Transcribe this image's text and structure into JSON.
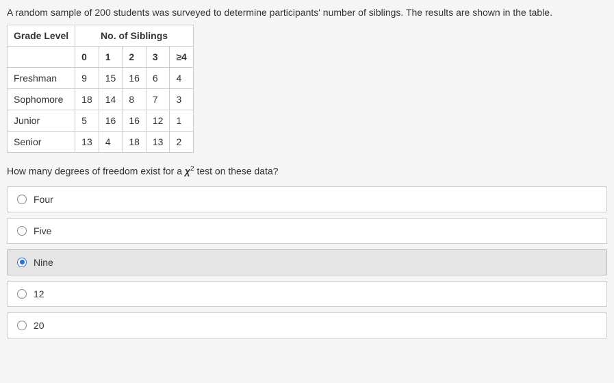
{
  "prompt": "A random sample of 200 students was surveyed to determine participants' number of siblings. The results are shown in the table.",
  "table": {
    "row_header": "Grade Level",
    "col_group_header": "No. of Siblings",
    "col_headers": [
      "0",
      "1",
      "2",
      "3",
      "≥4"
    ],
    "rows": [
      {
        "label": "Freshman",
        "cells": [
          "9",
          "15",
          "16",
          "6",
          "4"
        ]
      },
      {
        "label": "Sophomore",
        "cells": [
          "18",
          "14",
          "8",
          "7",
          "3"
        ]
      },
      {
        "label": "Junior",
        "cells": [
          "5",
          "16",
          "16",
          "12",
          "1"
        ]
      },
      {
        "label": "Senior",
        "cells": [
          "13",
          "4",
          "18",
          "13",
          "2"
        ]
      }
    ]
  },
  "question_pre": "How many degrees of freedom exist for a ",
  "question_chi": "χ",
  "question_sup": "2",
  "question_post": " test on these data?",
  "options": [
    {
      "label": "Four",
      "selected": false
    },
    {
      "label": "Five",
      "selected": false
    },
    {
      "label": "Nine",
      "selected": true
    },
    {
      "label": "12",
      "selected": false
    },
    {
      "label": "20",
      "selected": false
    }
  ],
  "colors": {
    "page_bg": "#f5f5f5",
    "panel_bg": "#ffffff",
    "border": "#cccccc",
    "text": "#333333",
    "selected_bg": "#e5e5e5",
    "accent": "#2a6fd6"
  }
}
